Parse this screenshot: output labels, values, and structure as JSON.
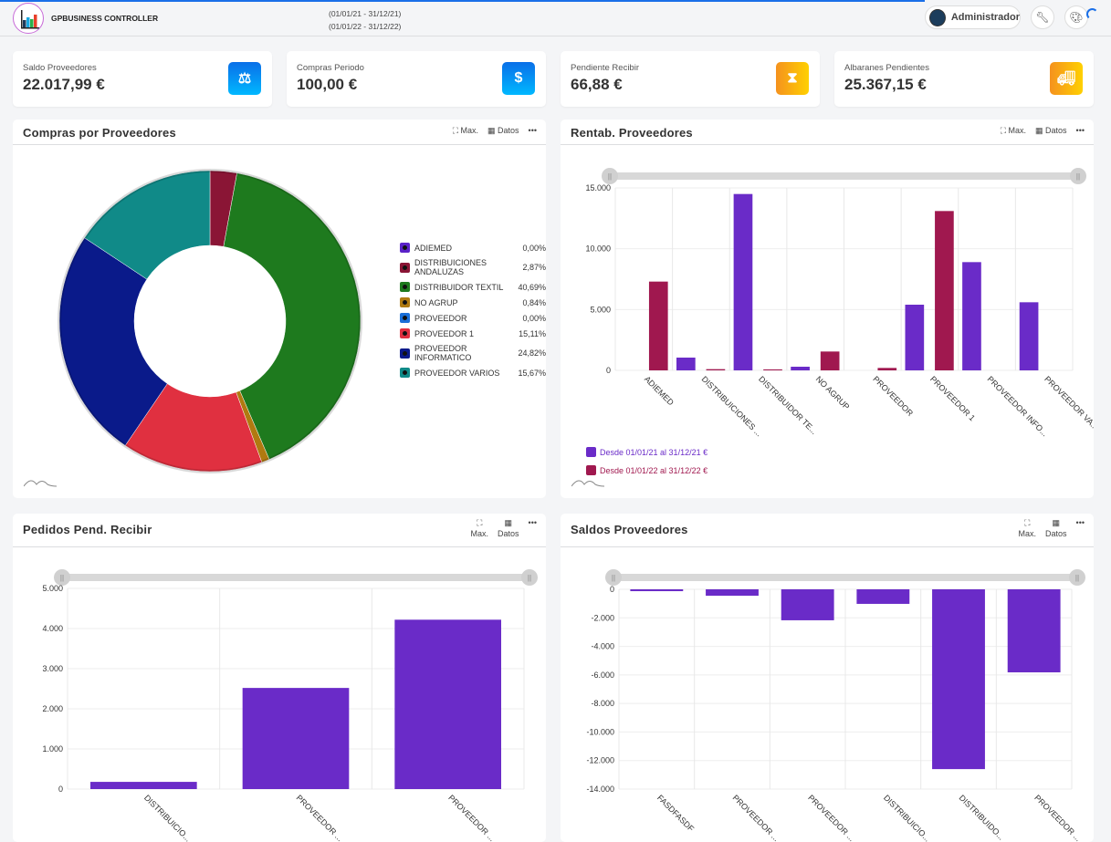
{
  "header": {
    "app_title": "GPBUSINESS CONTROLLER",
    "period_1": "(01/01/21 - 31/12/21)",
    "period_2": "(01/01/22 - 31/12/22)",
    "user": "Administrador",
    "icons": [
      "logo",
      "user-avatar-icon",
      "wrench-icon",
      "palette-icon",
      "loading-spinner"
    ]
  },
  "kpis": [
    {
      "label": "Saldo Proveedores",
      "value": "22.017,99 €",
      "icon": "balance-scale-icon",
      "color": "#0a6fe8"
    },
    {
      "label": "Compras Periodo",
      "value": "100,00 €",
      "icon": "coins-icon",
      "color": "#0a6fe8"
    },
    {
      "label": "Pendiente Recibir",
      "value": "66,88 €",
      "icon": "hourglass-icon",
      "color": "#f5921e"
    },
    {
      "label": "Albaranes Pendientes",
      "value": "25.367,15 €",
      "icon": "truck-icon",
      "color": "#f5921e"
    }
  ],
  "tools": {
    "max": "Max.",
    "datos": "Datos",
    "more": "•••"
  },
  "chart_data": [
    {
      "type": "pie",
      "title": "Compras por Proveedores",
      "donut": true,
      "categories": [
        "ADIEMED",
        "DISTRIBUICIONES ANDALUZAS",
        "DISTRIBUIDOR TEXTIL",
        "NO AGRUP",
        "PROVEEDOR",
        "PROVEEDOR 1",
        "PROVEEDOR INFORMATICO",
        "PROVEEDOR VARIOS"
      ],
      "values": [
        0.0,
        2.87,
        40.69,
        0.84,
        0.0,
        15.11,
        24.82,
        15.67
      ],
      "labels": [
        "0,00%",
        "2,87%",
        "40,69%",
        "0,84%",
        "0,00%",
        "15,11%",
        "24,82%",
        "15,67%"
      ],
      "colors": [
        "#5a22c8",
        "#8a1535",
        "#1e7a1e",
        "#b07a10",
        "#1a6fd8",
        "#e03040",
        "#0a1a8a",
        "#108a88"
      ],
      "legend": "right"
    },
    {
      "type": "bar",
      "title": "Rentab. Proveedores",
      "categories": [
        "ADIEMED",
        "DISTRIBUICIONES ...",
        "DISTRIBUIDOR TE...",
        "NO AGRUP",
        "PROVEEDOR",
        "PROVEEDOR 1",
        "PROVEEDOR INFO...",
        "PROVEEDOR VA..."
      ],
      "series": [
        {
          "name": "Desde 01/01/21 al 31/12/21  €",
          "color": "#6a2bc8",
          "values": [
            0,
            1050,
            14500,
            300,
            0,
            5400,
            8900,
            5600
          ]
        },
        {
          "name": "Desde 01/01/22 al 31/12/22  €",
          "color": "#a0184f",
          "values": [
            7300,
            100,
            80,
            1550,
            200,
            13100,
            0,
            null
          ]
        }
      ],
      "yticks": [
        "0",
        "5.000",
        "10.000",
        "15.000"
      ],
      "ylim": [
        0,
        15000
      ],
      "grid": true,
      "legend": "bottom-left"
    },
    {
      "type": "bar",
      "title": "Pedidos Pend. Recibir",
      "categories": [
        "DISTRIBUICIO...",
        "PROVEEDOR ...",
        "PROVEEDOR ..."
      ],
      "values": [
        180,
        2520,
        4220
      ],
      "color": "#6a2bc8",
      "yticks": [
        "0",
        "1.000",
        "2.000",
        "3.000",
        "4.000",
        "5.000"
      ],
      "ylim": [
        0,
        5000
      ],
      "grid": true
    },
    {
      "type": "bar",
      "title": "Saldos Proveedores",
      "categories": [
        "FASDFASDF",
        "PROVEEDOR ...",
        "PROVEEDOR ...",
        "DISTRIBUICIO...",
        "DISTRIBUIDO...",
        "PROVEEDOR ..."
      ],
      "values": [
        -130,
        -450,
        -2170,
        -1020,
        -12600,
        -5820
      ],
      "color": "#6a2bc8",
      "yticks": [
        "0",
        "-2.000",
        "-4.000",
        "-6.000",
        "-8.000",
        "-10.000",
        "-12.000",
        "-14.000"
      ],
      "ylim": [
        -14000,
        0
      ],
      "grid": true
    }
  ]
}
